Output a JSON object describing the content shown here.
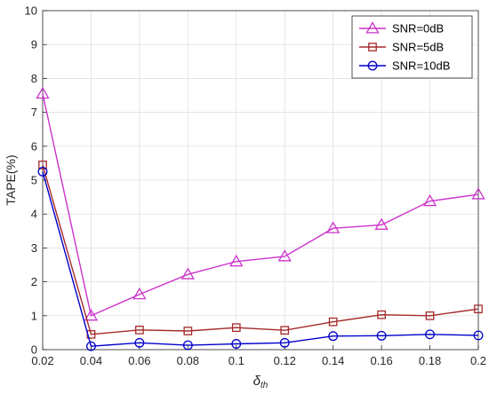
{
  "chart_data": {
    "type": "line",
    "title": "",
    "xlabel_base": "δ",
    "xlabel_sub": "th",
    "ylabel": "TAPE(%)",
    "x": [
      0.02,
      0.04,
      0.06,
      0.08,
      0.1,
      0.12,
      0.14,
      0.16,
      0.18,
      0.2
    ],
    "x_tick_labels": [
      "0.02",
      "0.04",
      "0.06",
      "0.08",
      "0.1",
      "0.12",
      "0.14",
      "0.16",
      "0.18",
      "0.2"
    ],
    "y_tick_labels": [
      "0",
      "1",
      "2",
      "3",
      "4",
      "5",
      "6",
      "7",
      "8",
      "9",
      "10"
    ],
    "xlim": [
      0.02,
      0.2
    ],
    "ylim": [
      0,
      10
    ],
    "grid": true,
    "legend_position": "top-right",
    "series": [
      {
        "name": "SNR=0dB",
        "marker": "triangle",
        "color": "#cc33cc",
        "values": [
          7.55,
          1.0,
          1.63,
          2.22,
          2.6,
          2.75,
          3.58,
          3.68,
          4.38,
          4.58
        ]
      },
      {
        "name": "SNR=5dB",
        "marker": "square",
        "color": "#a52a2a",
        "values": [
          5.45,
          0.45,
          0.58,
          0.55,
          0.65,
          0.57,
          0.82,
          1.03,
          1.0,
          1.2
        ]
      },
      {
        "name": "SNR=10dB",
        "marker": "circle",
        "color": "#0000cc",
        "values": [
          5.25,
          0.1,
          0.2,
          0.13,
          0.17,
          0.2,
          0.4,
          0.41,
          0.45,
          0.42
        ]
      }
    ]
  }
}
